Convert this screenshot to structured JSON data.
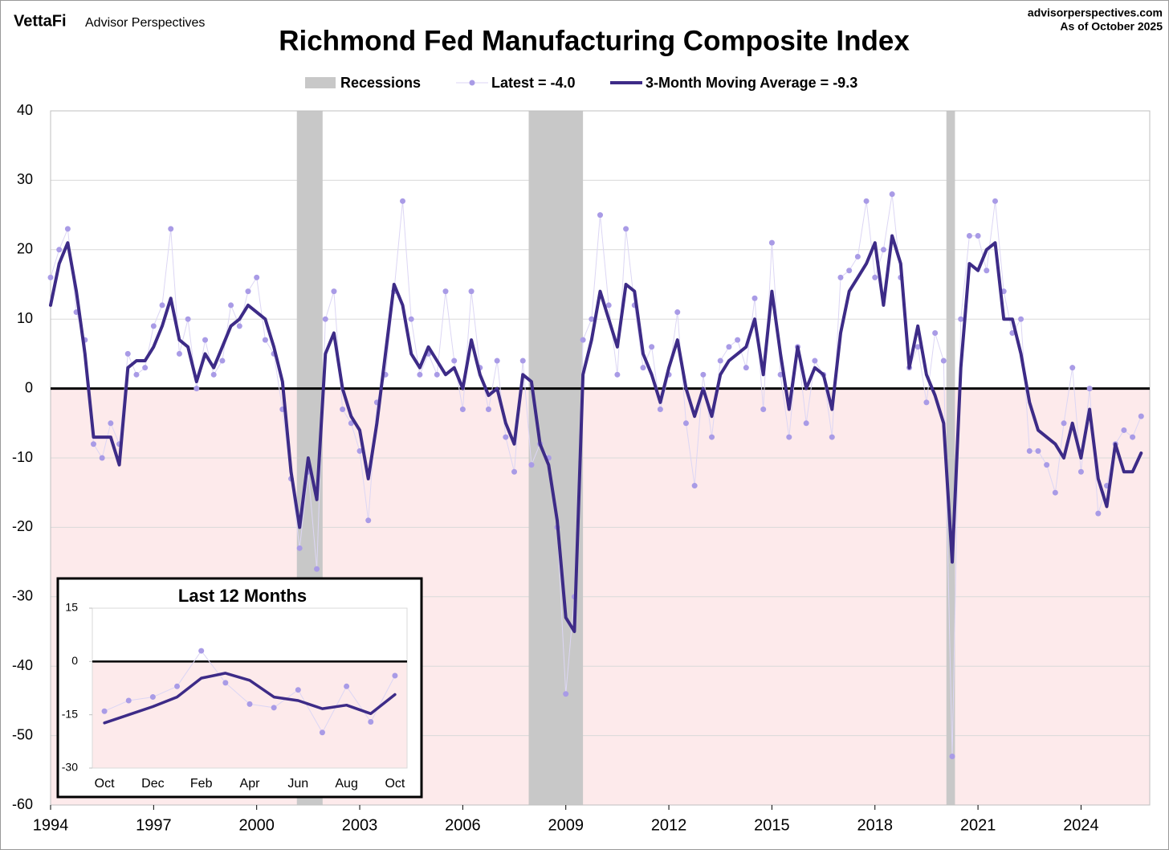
{
  "header": {
    "brand": "VettaFi",
    "site": "Advisor Perspectives",
    "url": "advisorperspectives.com",
    "date": "As of October 2025"
  },
  "chart_data": [
    {
      "type": "line",
      "title": "Richmond Fed Manufacturing Composite Index",
      "x": [
        1994,
        1994.25,
        1994.5,
        1994.75,
        1995,
        1995.25,
        1995.5,
        1995.75,
        1996,
        1996.25,
        1996.5,
        1996.75,
        1997,
        1997.25,
        1997.5,
        1997.75,
        1998,
        1998.25,
        1998.5,
        1998.75,
        1999,
        1999.25,
        1999.5,
        1999.75,
        2000,
        2000.25,
        2000.5,
        2000.75,
        2001,
        2001.25,
        2001.5,
        2001.75,
        2002,
        2002.25,
        2002.5,
        2002.75,
        2003,
        2003.25,
        2003.5,
        2003.75,
        2004,
        2004.25,
        2004.5,
        2004.75,
        2005,
        2005.25,
        2005.5,
        2005.75,
        2006,
        2006.25,
        2006.5,
        2006.75,
        2007,
        2007.25,
        2007.5,
        2007.75,
        2008,
        2008.25,
        2008.5,
        2008.75,
        2009,
        2009.25,
        2009.5,
        2009.75,
        2010,
        2010.25,
        2010.5,
        2010.75,
        2011,
        2011.25,
        2011.5,
        2011.75,
        2012,
        2012.25,
        2012.5,
        2012.75,
        2013,
        2013.25,
        2013.5,
        2013.75,
        2014,
        2014.25,
        2014.5,
        2014.75,
        2015,
        2015.25,
        2015.5,
        2015.75,
        2016,
        2016.25,
        2016.5,
        2016.75,
        2017,
        2017.25,
        2017.5,
        2017.75,
        2018,
        2018.25,
        2018.5,
        2018.75,
        2019,
        2019.25,
        2019.5,
        2019.75,
        2020,
        2020.25,
        2020.5,
        2020.75,
        2021,
        2021.25,
        2021.5,
        2021.75,
        2022,
        2022.25,
        2022.5,
        2022.75,
        2023,
        2023.25,
        2023.5,
        2023.75,
        2024,
        2024.25,
        2024.5,
        2024.75,
        2025,
        2025.25,
        2025.5,
        2025.75
      ],
      "series": [
        {
          "name": "Latest = -4.0",
          "color": "#a99be6",
          "line_color": "#dcd6f4",
          "values": [
            16,
            20,
            23,
            11,
            7,
            -8,
            -10,
            -5,
            -8,
            5,
            2,
            3,
            9,
            12,
            23,
            5,
            10,
            0,
            7,
            2,
            4,
            12,
            9,
            14,
            16,
            7,
            5,
            -3,
            -13,
            -23,
            -12,
            -26,
            10,
            14,
            -3,
            -5,
            -9,
            -19,
            -2,
            2,
            14,
            27,
            10,
            2,
            5,
            2,
            14,
            4,
            -3,
            14,
            3,
            -3,
            4,
            -7,
            -12,
            4,
            -11,
            -8,
            -10,
            -20,
            -44,
            -30,
            7,
            10,
            25,
            12,
            2,
            23,
            12,
            3,
            6,
            -3,
            2,
            11,
            -5,
            -14,
            2,
            -7,
            4,
            6,
            7,
            3,
            13,
            -3,
            21,
            2,
            -7,
            6,
            -5,
            4,
            2,
            -7,
            16,
            17,
            19,
            27,
            16,
            20,
            28,
            16,
            3,
            6,
            -2,
            8,
            4,
            -53,
            10,
            22,
            22,
            17,
            27,
            14,
            8,
            10,
            -9,
            -9,
            -11,
            -15,
            -5,
            3,
            -12,
            0,
            -18,
            -14,
            -8,
            -6,
            -7,
            -4
          ]
        },
        {
          "name": "3-Month Moving Average = -9.3",
          "color": "#3d2b87",
          "values": [
            12,
            18,
            21,
            14,
            5,
            -7,
            -7,
            -7,
            -11,
            3,
            4,
            4,
            6,
            9,
            13,
            7,
            6,
            1,
            5,
            3,
            6,
            9,
            10,
            12,
            11,
            10,
            6,
            1,
            -12,
            -20,
            -10,
            -16,
            5,
            8,
            0,
            -4,
            -6,
            -13,
            -5,
            5,
            15,
            12,
            5,
            3,
            6,
            4,
            2,
            3,
            0,
            7,
            2,
            -1,
            0,
            -5,
            -8,
            2,
            1,
            -8,
            -11,
            -19,
            -33,
            -35,
            2,
            7,
            14,
            10,
            6,
            15,
            14,
            5,
            2,
            -2,
            3,
            7,
            0,
            -4,
            0,
            -4,
            2,
            4,
            5,
            6,
            10,
            2,
            14,
            5,
            -3,
            6,
            0,
            3,
            2,
            -3,
            8,
            14,
            16,
            18,
            21,
            12,
            22,
            18,
            3,
            9,
            2,
            -1,
            -5,
            -25,
            3,
            18,
            17,
            20,
            21,
            10,
            10,
            5,
            -2,
            -6,
            -7,
            -8,
            -10,
            -5,
            -10,
            -3,
            -13,
            -17,
            -8,
            -12,
            -12,
            -9.3
          ]
        }
      ],
      "recessions": {
        "name": "Recessions",
        "color": "#c8c8c8",
        "periods": [
          [
            2001.17,
            2001.92
          ],
          [
            2007.92,
            2009.5
          ],
          [
            2020.08,
            2020.33
          ]
        ]
      },
      "xlim": [
        1994,
        2026
      ],
      "xticks": [
        1994,
        1997,
        2000,
        2003,
        2006,
        2009,
        2012,
        2015,
        2018,
        2021,
        2024
      ],
      "ylim": [
        -60,
        40
      ],
      "yticks": [
        40,
        30,
        20,
        10,
        0,
        -10,
        -20,
        -30,
        -40,
        -50,
        -60
      ],
      "grid": true,
      "negative_fill": "#fdeaeb",
      "negative_tick_color": "#ff0000"
    },
    {
      "type": "line",
      "title": "Last 12 Months",
      "categories": [
        "Oct",
        null,
        "Dec",
        null,
        "Feb",
        null,
        "Apr",
        null,
        "Jun",
        null,
        "Aug",
        null,
        "Oct"
      ],
      "series": [
        {
          "name": "Latest",
          "color": "#a99be6",
          "line_color": "#dcd6f4",
          "values": [
            -14,
            -11,
            -10,
            -7,
            3,
            -6,
            -12,
            -13,
            -8,
            -20,
            -7,
            -17,
            -4
          ]
        },
        {
          "name": "3-Month Moving Average",
          "color": "#3d2b87",
          "values": [
            -17.3,
            -15,
            -12.7,
            -10,
            -4.7,
            -3.3,
            -5.3,
            -10,
            -11,
            -13.3,
            -12.3,
            -14.7,
            -9.3
          ]
        }
      ],
      "ylim": [
        -30,
        15
      ],
      "yticks": [
        15,
        0,
        -15,
        -30
      ],
      "negative_fill": "#fdeaeb",
      "negative_tick_color": "#ff0000"
    }
  ]
}
